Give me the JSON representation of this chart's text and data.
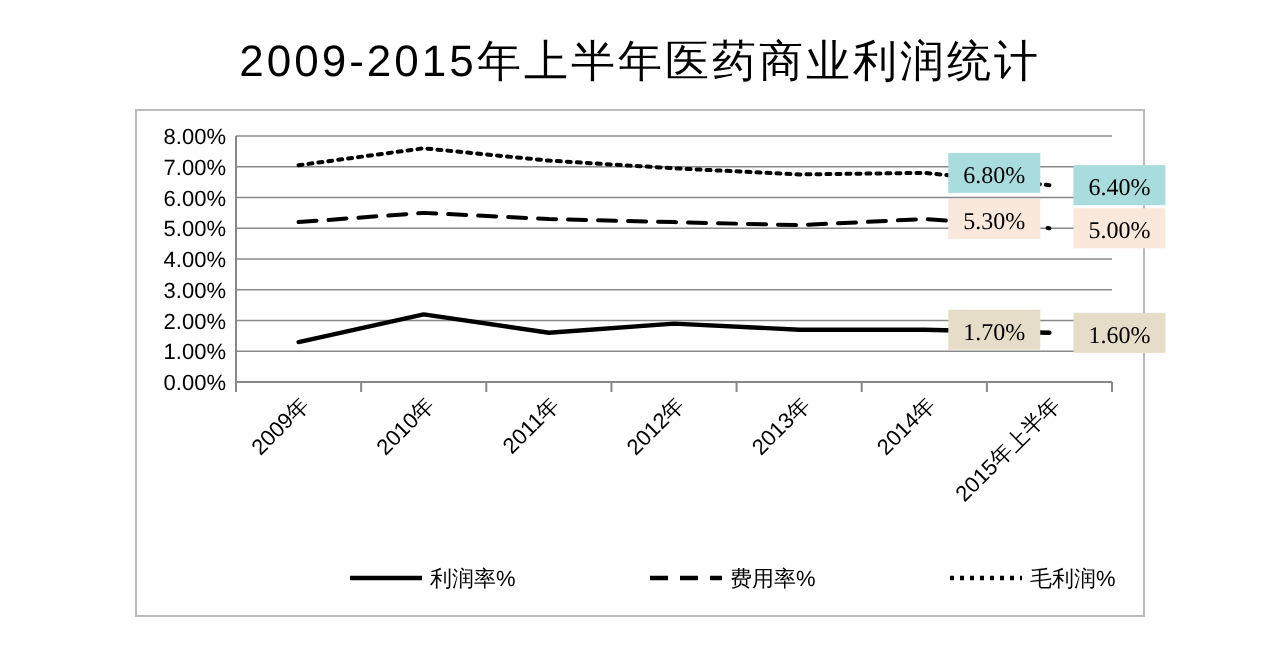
{
  "chart_data": {
    "type": "line",
    "title": "2009-2015年上半年医药商业利润统计",
    "categories": [
      "2009年",
      "2010年",
      "2011年",
      "2012年",
      "2013年",
      "2014年",
      "2015年上半年"
    ],
    "series": [
      {
        "name": "利润率%",
        "color": "#000000",
        "line_style": "solid",
        "values": [
          1.3,
          2.2,
          1.6,
          1.9,
          1.7,
          1.7,
          1.6
        ],
        "value_labels": [
          null,
          null,
          null,
          null,
          null,
          "1.70%",
          "1.60%"
        ]
      },
      {
        "name": "费用率%",
        "color": "#000000",
        "line_style": "dashed",
        "values": [
          5.2,
          5.5,
          5.3,
          5.2,
          5.1,
          5.3,
          5.0
        ],
        "value_labels": [
          null,
          null,
          null,
          null,
          null,
          "5.30%",
          "5.00%"
        ]
      },
      {
        "name": "毛利润%",
        "color": "#000000",
        "line_style": "dotted",
        "values": [
          7.05,
          7.6,
          7.2,
          6.95,
          6.75,
          6.8,
          6.4
        ],
        "value_labels": [
          null,
          null,
          null,
          null,
          null,
          "6.80%",
          "6.40%"
        ]
      }
    ],
    "ylim": [
      0,
      8
    ],
    "yticks": [
      {
        "value": 0,
        "label": "0.00%"
      },
      {
        "value": 1,
        "label": "1.00%"
      },
      {
        "value": 2,
        "label": "2.00%"
      },
      {
        "value": 3,
        "label": "3.00%"
      },
      {
        "value": 4,
        "label": "4.00%"
      },
      {
        "value": 5,
        "label": "5.00%"
      },
      {
        "value": 6,
        "label": "6.00%"
      },
      {
        "value": 7,
        "label": "7.00%"
      },
      {
        "value": 8,
        "label": "8.00%"
      }
    ],
    "grid": "y",
    "legend": "bottom",
    "marker": "none"
  }
}
